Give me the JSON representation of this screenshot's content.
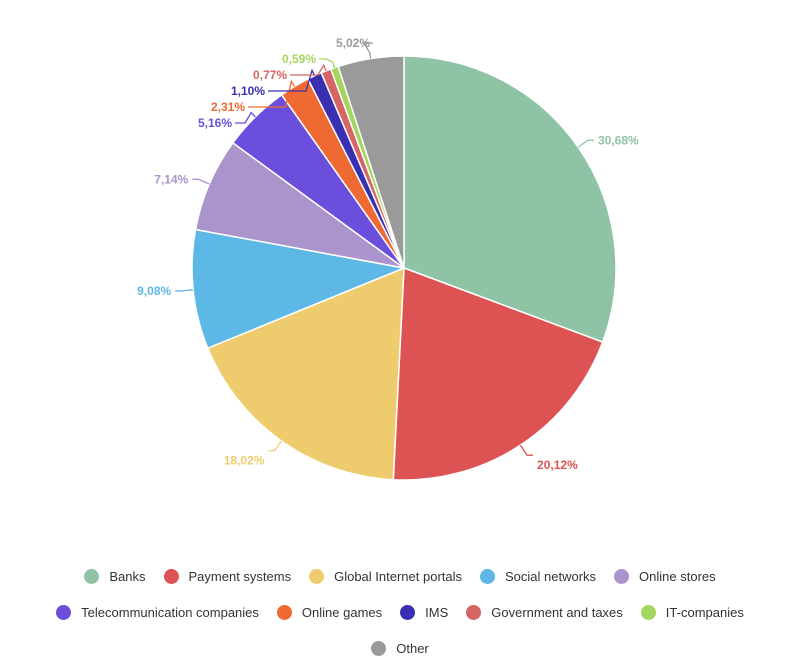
{
  "chart_data": {
    "type": "pie",
    "title": "",
    "slices": [
      {
        "name": "Banks",
        "value": 30.68,
        "label": "30,68%",
        "color": "#8fc3a6"
      },
      {
        "name": "Payment systems",
        "value": 20.12,
        "label": "20,12%",
        "color": "#dd5353"
      },
      {
        "name": "Global Internet portals",
        "value": 18.02,
        "label": "18,02%",
        "color": "#eecb6c"
      },
      {
        "name": "Social networks",
        "value": 9.08,
        "label": "9,08%",
        "color": "#5db8e5"
      },
      {
        "name": "Online stores",
        "value": 7.14,
        "label": "7,14%",
        "color": "#ab93cb"
      },
      {
        "name": "Telecommunication companies",
        "value": 5.16,
        "label": "5,16%",
        "color": "#6b4fdc"
      },
      {
        "name": "Online games",
        "value": 2.31,
        "label": "2,31%",
        "color": "#ef6a32"
      },
      {
        "name": "IMS",
        "value": 1.1,
        "label": "1,10%",
        "color": "#3a2fb0"
      },
      {
        "name": "Government and taxes",
        "value": 0.77,
        "label": "0,77%",
        "color": "#d66565"
      },
      {
        "name": "IT-companies",
        "value": 0.59,
        "label": "0,59%",
        "color": "#a4d65e"
      },
      {
        "name": "Other",
        "value": 5.02,
        "label": "5,02%",
        "color": "#9a9a9a"
      }
    ],
    "legend_placement": "bottom"
  },
  "legend": {
    "rows": [
      [
        "Banks",
        "Payment systems",
        "Global Internet portals",
        "Social networks",
        "Online stores"
      ],
      [
        "Telecommunication companies",
        "Online games",
        "IMS",
        "Government and taxes",
        "IT-companies"
      ],
      [
        "Other"
      ]
    ]
  }
}
